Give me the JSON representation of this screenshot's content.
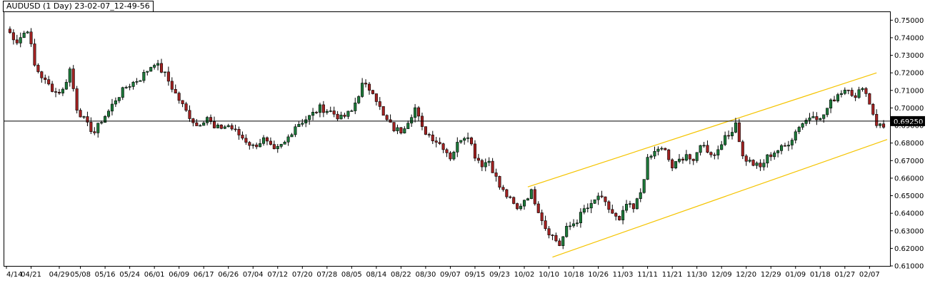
{
  "window": {
    "title": "AUDUSD (1 Day) 23-02-07_12-49-56"
  },
  "colors": {
    "background": "#ffffff",
    "bull_body": "#1c7a3a",
    "bear_body": "#a32121",
    "wick": "#000000",
    "channel": "#f5c400",
    "hline": "#000000",
    "price_label_bg": "#000000"
  },
  "chart_data": {
    "type": "candlestick",
    "title": "AUDUSD (1 Day) 23-02-07_12-49-56",
    "ylim": [
      0.61,
      0.755
    ],
    "y_ticks": [
      "0.75000",
      "0.74000",
      "0.73000",
      "0.72000",
      "0.71000",
      "0.70000",
      "0.69000",
      "0.68000",
      "0.67000",
      "0.66000",
      "0.65000",
      "0.64000",
      "0.63000",
      "0.62000",
      "0.61000"
    ],
    "y_tick_values": [
      0.75,
      0.74,
      0.73,
      0.72,
      0.71,
      0.7,
      0.69,
      0.68,
      0.67,
      0.66,
      0.65,
      0.64,
      0.63,
      0.62,
      0.61
    ],
    "x_ticks": [
      "4/14",
      "04/21",
      "04/29",
      "05/08",
      "05/16",
      "05/24",
      "06/01",
      "06/09",
      "06/17",
      "06/26",
      "07/04",
      "07/12",
      "07/20",
      "07/28",
      "08/05",
      "08/14",
      "08/22",
      "08/30",
      "09/07",
      "09/15",
      "09/23",
      "10/02",
      "10/10",
      "10/18",
      "10/26",
      "11/03",
      "11/11",
      "11/21",
      "11/30",
      "12/09",
      "12/20",
      "12/29",
      "01/09",
      "01/18",
      "01/27",
      "02/07"
    ],
    "x_tick_index": [
      0,
      7,
      15,
      21,
      28,
      35,
      42,
      49,
      56,
      63,
      70,
      77,
      84,
      91,
      98,
      105,
      112,
      119,
      126,
      133,
      140,
      147,
      154,
      161,
      168,
      175,
      182,
      189,
      196,
      203,
      210,
      217,
      224,
      231,
      238,
      245
    ],
    "horizontal_line": {
      "value": 0.6925,
      "label": "0.69250"
    },
    "channel": {
      "upper": {
        "start_index": 148,
        "start": 0.655,
        "end_index": 247,
        "end": 0.72
      },
      "lower": {
        "start_index": 155,
        "start": 0.615,
        "end_index": 250,
        "end": 0.682
      }
    },
    "anchors": [
      [
        0,
        0.745
      ],
      [
        3,
        0.738
      ],
      [
        6,
        0.745
      ],
      [
        7,
        0.735
      ],
      [
        8,
        0.724
      ],
      [
        11,
        0.715
      ],
      [
        14,
        0.709
      ],
      [
        16,
        0.71
      ],
      [
        18,
        0.722
      ],
      [
        20,
        0.7
      ],
      [
        23,
        0.69
      ],
      [
        25,
        0.686
      ],
      [
        27,
        0.693
      ],
      [
        29,
        0.698
      ],
      [
        31,
        0.705
      ],
      [
        34,
        0.712
      ],
      [
        38,
        0.717
      ],
      [
        42,
        0.726
      ],
      [
        45,
        0.719
      ],
      [
        48,
        0.708
      ],
      [
        51,
        0.698
      ],
      [
        54,
        0.69
      ],
      [
        57,
        0.695
      ],
      [
        59,
        0.688
      ],
      [
        63,
        0.69
      ],
      [
        67,
        0.683
      ],
      [
        70,
        0.678
      ],
      [
        73,
        0.682
      ],
      [
        76,
        0.675
      ],
      [
        79,
        0.68
      ],
      [
        82,
        0.69
      ],
      [
        86,
        0.695
      ],
      [
        89,
        0.7
      ],
      [
        92,
        0.698
      ],
      [
        95,
        0.694
      ],
      [
        98,
        0.698
      ],
      [
        101,
        0.713
      ],
      [
        104,
        0.71
      ],
      [
        107,
        0.695
      ],
      [
        110,
        0.688
      ],
      [
        112,
        0.687
      ],
      [
        114,
        0.693
      ],
      [
        116,
        0.7
      ],
      [
        118,
        0.688
      ],
      [
        121,
        0.683
      ],
      [
        124,
        0.678
      ],
      [
        126,
        0.672
      ],
      [
        129,
        0.683
      ],
      [
        131,
        0.685
      ],
      [
        133,
        0.673
      ],
      [
        135,
        0.668
      ],
      [
        137,
        0.67
      ],
      [
        140,
        0.655
      ],
      [
        142,
        0.65
      ],
      [
        145,
        0.642
      ],
      [
        147,
        0.648
      ],
      [
        149,
        0.652
      ],
      [
        151,
        0.642
      ],
      [
        153,
        0.632
      ],
      [
        155,
        0.627
      ],
      [
        157,
        0.622
      ],
      [
        159,
        0.631
      ],
      [
        162,
        0.636
      ],
      [
        164,
        0.642
      ],
      [
        166,
        0.644
      ],
      [
        168,
        0.65
      ],
      [
        170,
        0.645
      ],
      [
        172,
        0.64
      ],
      [
        174,
        0.635
      ],
      [
        176,
        0.645
      ],
      [
        178,
        0.642
      ],
      [
        180,
        0.652
      ],
      [
        182,
        0.67
      ],
      [
        185,
        0.677
      ],
      [
        187,
        0.675
      ],
      [
        189,
        0.666
      ],
      [
        191,
        0.67
      ],
      [
        193,
        0.674
      ],
      [
        195,
        0.668
      ],
      [
        197,
        0.68
      ],
      [
        199,
        0.676
      ],
      [
        201,
        0.673
      ],
      [
        203,
        0.681
      ],
      [
        205,
        0.684
      ],
      [
        207,
        0.692
      ],
      [
        209,
        0.672
      ],
      [
        212,
        0.668
      ],
      [
        214,
        0.666
      ],
      [
        216,
        0.672
      ],
      [
        218,
        0.675
      ],
      [
        221,
        0.678
      ],
      [
        223,
        0.683
      ],
      [
        225,
        0.69
      ],
      [
        227,
        0.693
      ],
      [
        229,
        0.697
      ],
      [
        231,
        0.693
      ],
      [
        234,
        0.703
      ],
      [
        236,
        0.708
      ],
      [
        239,
        0.712
      ],
      [
        241,
        0.705
      ],
      [
        243,
        0.713
      ],
      [
        245,
        0.703
      ],
      [
        247,
        0.691
      ],
      [
        249,
        0.689
      ]
    ]
  }
}
